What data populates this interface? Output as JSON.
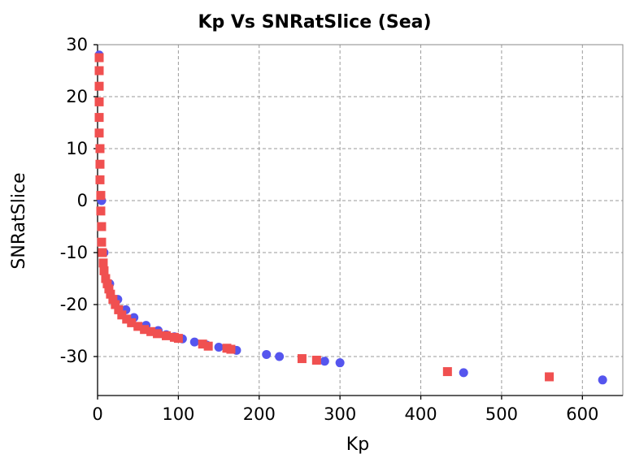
{
  "chart_data": {
    "type": "scatter",
    "title": "Kp Vs SNRatSlice (Sea)",
    "xlabel": "Kp",
    "ylabel": "SNRatSlice",
    "xlim": [
      0,
      650
    ],
    "ylim": [
      -37.5,
      30
    ],
    "xticks": [
      0,
      100,
      200,
      300,
      400,
      500,
      600
    ],
    "yticks": [
      30,
      20,
      10,
      0,
      -10,
      -20,
      -30
    ],
    "grid": true,
    "legend": "none",
    "series": [
      {
        "marker": "circle",
        "color": "#5555ee",
        "points": [
          [
            2,
            28
          ],
          [
            3,
            10
          ],
          [
            5,
            0
          ],
          [
            8,
            -10
          ],
          [
            15,
            -16
          ],
          [
            25,
            -19
          ],
          [
            35,
            -21
          ],
          [
            45,
            -22.5
          ],
          [
            60,
            -24
          ],
          [
            75,
            -25
          ],
          [
            85,
            -25.8
          ],
          [
            95,
            -26.2
          ],
          [
            105,
            -26.6
          ],
          [
            120,
            -27.2
          ],
          [
            135,
            -27.8
          ],
          [
            150,
            -28.2
          ],
          [
            172,
            -28.8
          ],
          [
            209,
            -29.6
          ],
          [
            225,
            -30.0
          ],
          [
            281,
            -30.9
          ],
          [
            300,
            -31.2
          ],
          [
            453,
            -33.1
          ],
          [
            625,
            -34.5
          ]
        ]
      },
      {
        "marker": "square",
        "color": "#f05050",
        "points": [
          [
            2,
            27.5
          ],
          [
            2,
            25
          ],
          [
            2,
            22
          ],
          [
            2,
            19
          ],
          [
            2,
            16
          ],
          [
            2,
            13
          ],
          [
            3,
            10
          ],
          [
            3,
            7
          ],
          [
            3,
            4
          ],
          [
            4,
            1
          ],
          [
            4,
            -2
          ],
          [
            5,
            -5
          ],
          [
            5,
            -8
          ],
          [
            6,
            -10
          ],
          [
            7,
            -12
          ],
          [
            8,
            -13.5
          ],
          [
            10,
            -15
          ],
          [
            12,
            -16
          ],
          [
            14,
            -17
          ],
          [
            16,
            -18
          ],
          [
            19,
            -19
          ],
          [
            22,
            -20
          ],
          [
            26,
            -21
          ],
          [
            30,
            -22
          ],
          [
            36,
            -22.8
          ],
          [
            42,
            -23.5
          ],
          [
            50,
            -24.2
          ],
          [
            58,
            -24.8
          ],
          [
            66,
            -25.2
          ],
          [
            74,
            -25.6
          ],
          [
            85,
            -26.0
          ],
          [
            95,
            -26.3
          ],
          [
            100,
            -26.5
          ],
          [
            130,
            -27.6
          ],
          [
            137,
            -28.0
          ],
          [
            160,
            -28.4
          ],
          [
            165,
            -28.6
          ],
          [
            253,
            -30.4
          ],
          [
            271,
            -30.7
          ],
          [
            433,
            -32.9
          ],
          [
            559,
            -33.9
          ]
        ]
      }
    ]
  }
}
